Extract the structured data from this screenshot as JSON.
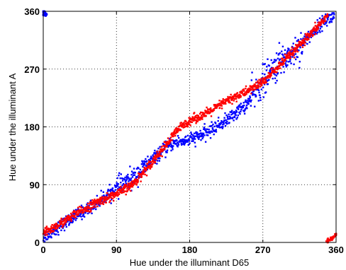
{
  "chart_data": {
    "type": "scatter",
    "title": "",
    "xlabel": "Hue under the illuminant D65",
    "ylabel": "Hue under the illuminant A",
    "xlim": [
      0,
      360
    ],
    "ylim": [
      0,
      360
    ],
    "xticks": [
      "0",
      "90",
      "180",
      "270",
      "360"
    ],
    "yticks": [
      "0",
      "90",
      "180",
      "270",
      "360"
    ],
    "grid": true,
    "legend": "none",
    "series": [
      {
        "color": "#0000ff",
        "marker": "dot",
        "trend": [
          [
            0,
            8
          ],
          [
            20,
            25
          ],
          [
            45,
            45
          ],
          [
            70,
            65
          ],
          [
            90,
            85
          ],
          [
            110,
            100
          ],
          [
            135,
            130
          ],
          [
            160,
            155
          ],
          [
            180,
            160
          ],
          [
            200,
            170
          ],
          [
            225,
            190
          ],
          [
            250,
            215
          ],
          [
            270,
            250
          ],
          [
            290,
            280
          ],
          [
            310,
            300
          ],
          [
            330,
            325
          ],
          [
            345,
            345
          ],
          [
            358,
            352
          ]
        ],
        "spread": 5,
        "outliers": [
          [
            0,
            355
          ],
          [
            1,
            357
          ],
          [
            2,
            354
          ],
          [
            0,
            359
          ],
          [
            3,
            356
          ],
          [
            1,
            360
          ]
        ],
        "count": 1000
      },
      {
        "color": "#ff0000",
        "marker": "dot",
        "trend": [
          [
            0,
            14
          ],
          [
            20,
            28
          ],
          [
            45,
            48
          ],
          [
            70,
            65
          ],
          [
            90,
            75
          ],
          [
            110,
            90
          ],
          [
            130,
            120
          ],
          [
            150,
            150
          ],
          [
            165,
            175
          ],
          [
            180,
            190
          ],
          [
            200,
            200
          ],
          [
            225,
            220
          ],
          [
            250,
            235
          ],
          [
            270,
            250
          ],
          [
            290,
            275
          ],
          [
            310,
            300
          ],
          [
            330,
            325
          ],
          [
            350,
            355
          ]
        ],
        "spread": 3.5,
        "outliers": [
          [
            350,
            2
          ],
          [
            352,
            4
          ],
          [
            354,
            6
          ],
          [
            356,
            8
          ],
          [
            358,
            10
          ],
          [
            360,
            12
          ]
        ],
        "count": 1100
      }
    ]
  }
}
